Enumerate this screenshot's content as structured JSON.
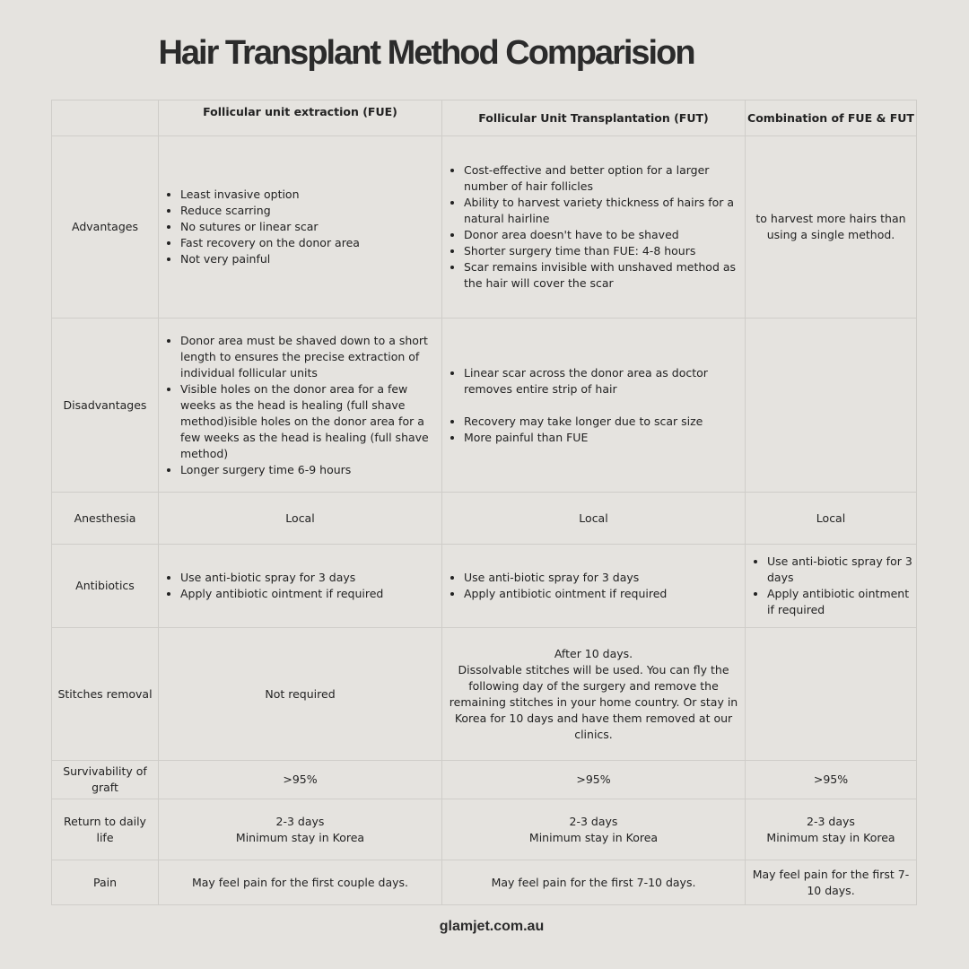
{
  "title": "Hair Transplant Method Comparision",
  "columns": [
    "",
    "Follicular unit extraction (FUE)",
    "Follicular Unit Transplantation (FUT)",
    "Combination of FUE & FUT"
  ],
  "rows": [
    {
      "label": "Advantages",
      "cells": [
        {
          "list": [
            "Least invasive option",
            "Reduce scarring",
            "No sutures or linear scar",
            "Fast recovery on the donor area",
            "Not very painful"
          ]
        },
        {
          "list": [
            "Cost-effective and better option for a larger number of hair follicles",
            "Ability to harvest variety thickness of hairs for a natural hairline",
            "Donor area doesn't have to be shaved",
            "Shorter surgery time than FUE: 4-8 hours",
            "Scar remains invisible with unshaved method as the hair will cover the scar"
          ]
        },
        {
          "text": "to harvest more hairs than using a single method."
        }
      ]
    },
    {
      "label": "Disadvantages",
      "cells": [
        {
          "list": [
            "Donor area must be shaved down to a short length to ensures the precise extraction of individual follicular units",
            "Visible holes on the donor area for a few weeks as the head is healing (full shave method)isible holes on the donor area for a few weeks as the head is healing (full shave method)",
            "Longer surgery time 6-9 hours"
          ]
        },
        {
          "list": [
            "Linear scar across the donor area as doctor removes entire strip of hair",
            "Recovery may take longer due to scar size",
            "More painful than FUE"
          ],
          "gap_before": 1
        },
        {
          "text": ""
        }
      ]
    },
    {
      "label": "Anesthesia",
      "cells": [
        {
          "text": "Local"
        },
        {
          "text": "Local"
        },
        {
          "text": "Local"
        }
      ]
    },
    {
      "label": "Antibiotics",
      "cells": [
        {
          "list": [
            "Use anti-biotic spray for 3 days",
            "Apply antibiotic ointment if required"
          ]
        },
        {
          "list": [
            "Use anti-biotic spray for 3 days",
            "Apply antibiotic ointment if required"
          ]
        },
        {
          "list": [
            "Use anti-biotic spray for 3 days",
            "Apply antibiotic ointment if required"
          ]
        }
      ]
    },
    {
      "label": "Stitches removal",
      "cells": [
        {
          "text": "Not required"
        },
        {
          "text": "After 10 days.\nDissolvable stitches will be used. You can fly the following day of the surgery and remove the remaining stitches in your home country. Or stay in Korea for 10 days and have them removed at our clinics."
        },
        {
          "text": ""
        }
      ]
    },
    {
      "label": "Survivability of graft",
      "cells": [
        {
          "text": ">95%"
        },
        {
          "text": ">95%"
        },
        {
          "text": ">95%"
        }
      ]
    },
    {
      "label": "Return to daily life",
      "cells": [
        {
          "text": "2-3 days\nMinimum stay in Korea"
        },
        {
          "text": "2-3 days\nMinimum stay in Korea"
        },
        {
          "text": "2-3 days\nMinimum stay in Korea"
        }
      ]
    },
    {
      "label": "Pain",
      "cells": [
        {
          "text": "May feel pain for the first couple days."
        },
        {
          "text": "May feel pain for the first 7-10 days."
        },
        {
          "text": "May feel pain for the first 7-10 days."
        }
      ]
    }
  ],
  "footer": "glamjet.com.au"
}
